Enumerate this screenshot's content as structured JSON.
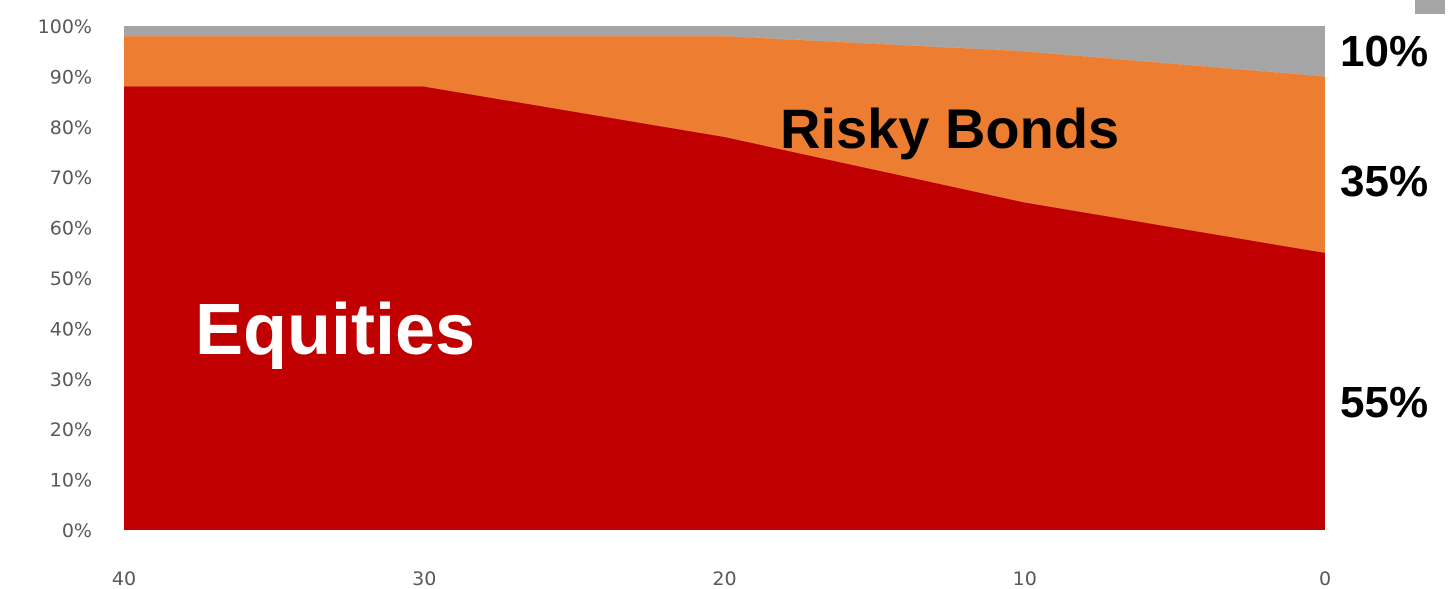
{
  "chart_data": {
    "type": "area",
    "stacked": true,
    "percent": true,
    "x": [
      40,
      30,
      20,
      10,
      0
    ],
    "series": [
      {
        "name": "Equities",
        "color": "#C00000",
        "values": [
          88,
          88,
          78,
          65,
          55
        ]
      },
      {
        "name": "Risky Bonds",
        "color": "#ED7D31",
        "values": [
          10,
          10,
          20,
          30,
          35
        ]
      },
      {
        "name": "",
        "color": "#A5A5A5",
        "values": [
          2,
          2,
          2,
          5,
          10
        ]
      }
    ],
    "ylim": [
      0,
      100
    ],
    "y_ticks": [
      "0%",
      "10%",
      "20%",
      "30%",
      "40%",
      "50%",
      "60%",
      "70%",
      "80%",
      "90%",
      "100%"
    ],
    "x_ticks": [
      "40",
      "30",
      "20",
      "10",
      "0"
    ],
    "area_labels": {
      "equities": "Equities",
      "risky_bonds": "Risky Bonds"
    },
    "end_labels": {
      "top": "10%",
      "middle": "35%",
      "bottom": "55%"
    },
    "grid": false
  }
}
